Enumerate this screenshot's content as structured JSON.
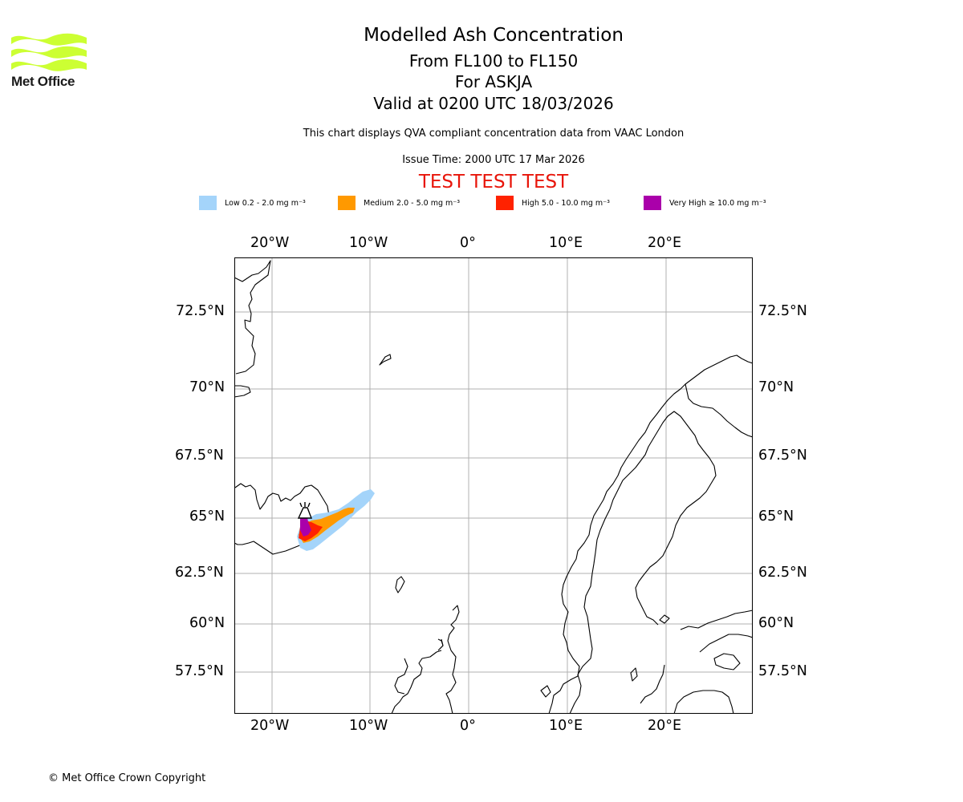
{
  "logo": {
    "name": "Met Office"
  },
  "title": {
    "main": "Modelled Ash Concentration",
    "levels": "From FL100 to FL150",
    "volcano": "For ASKJA",
    "valid": "Valid at 0200 UTC 18/03/2026"
  },
  "subtitle": "This chart displays QVA compliant concentration data from VAAC London",
  "issue_time": "Issue Time: 2000 UTC 17 Mar 2026",
  "test_banner": "TEST TEST TEST",
  "legend": [
    {
      "label": "Low 0.2 - 2.0 mg m⁻³",
      "color": "#a4d4fa"
    },
    {
      "label": "Medium 2.0 - 5.0 mg m⁻³",
      "color": "#ff9900"
    },
    {
      "label": "High 5.0 - 10.0 mg m⁻³",
      "color": "#ff2200"
    },
    {
      "label": "Very High ≥ 10.0 mg m⁻³",
      "color": "#aa00aa"
    }
  ],
  "axes": {
    "longitudes": [
      "20°W",
      "10°W",
      "0°",
      "10°E",
      "20°E"
    ],
    "latitudes": [
      "72.5°N",
      "70°N",
      "67.5°N",
      "65°N",
      "62.5°N",
      "60°N",
      "57.5°N"
    ]
  },
  "copyright": "© Met Office Crown Copyright"
}
